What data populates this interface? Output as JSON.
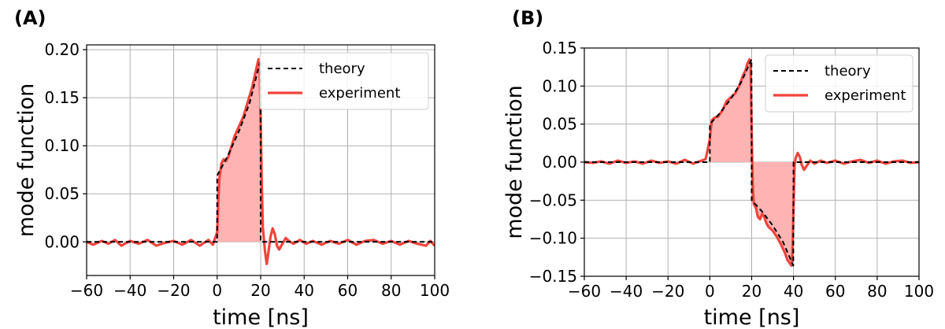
{
  "chart_data": [
    {
      "panel_label": "(A)",
      "type": "line",
      "xlabel": "time [ns]",
      "ylabel": "mode function",
      "xlim": [
        -60,
        100
      ],
      "ylim": [
        -0.035,
        0.205
      ],
      "xticks": [
        -60,
        -40,
        -20,
        0,
        20,
        40,
        60,
        80,
        100
      ],
      "xtick_labels": [
        "−60",
        "−40",
        "−20",
        "0",
        "20",
        "40",
        "60",
        "80",
        "100"
      ],
      "yticks": [
        0.0,
        0.05,
        0.1,
        0.15,
        0.2
      ],
      "ytick_labels": [
        "0.00",
        "0.05",
        "0.10",
        "0.15",
        "0.20"
      ],
      "grid": true,
      "legend_position": "top-right",
      "series": [
        {
          "name": "theory",
          "style": "dashed",
          "color": "#000000",
          "x": [
            -60,
            0,
            0,
            5,
            10,
            15,
            19.9,
            20,
            100
          ],
          "y": [
            0,
            0,
            0.069,
            0.09,
            0.115,
            0.145,
            0.189,
            0,
            0
          ]
        },
        {
          "name": "experiment",
          "style": "solid",
          "color": "#f0443c",
          "fill": "#ffb3b3",
          "fill_range": [
            0,
            20
          ],
          "x": [
            -60,
            -57,
            -53,
            -50,
            -47,
            -44,
            -40,
            -36,
            -32,
            -28,
            -24,
            -20,
            -16,
            -12,
            -8,
            -4,
            -2,
            0,
            0.5,
            1,
            2,
            3,
            4,
            5,
            6,
            8,
            10,
            12,
            14,
            16,
            17,
            18,
            19,
            19.5,
            20,
            20.5,
            21,
            22,
            22.8,
            23.5,
            24.5,
            25.5,
            26.5,
            27.5,
            28.5,
            30,
            31.5,
            33,
            35,
            38,
            41,
            44,
            48,
            52,
            56,
            60,
            64,
            68,
            72,
            76,
            80,
            84,
            88,
            92,
            96,
            98,
            100
          ],
          "y": [
            0,
            -0.003,
            0.001,
            -0.002,
            0.002,
            -0.004,
            0.001,
            -0.002,
            0.002,
            -0.004,
            -0.001,
            0.001,
            -0.003,
            0.002,
            -0.004,
            0.002,
            -0.003,
            0.01,
            0.04,
            0.065,
            0.082,
            0.086,
            0.084,
            0.088,
            0.095,
            0.11,
            0.12,
            0.13,
            0.145,
            0.16,
            0.17,
            0.18,
            0.19,
            0.185,
            0.13,
            0.06,
            0.015,
            -0.01,
            -0.023,
            -0.012,
            0.005,
            0.014,
            0.008,
            -0.004,
            -0.008,
            -0.002,
            0.004,
            0.001,
            -0.002,
            0.002,
            -0.002,
            0.001,
            -0.003,
            0.001,
            -0.002,
            0.002,
            -0.003,
            0.001,
            0.002,
            -0.002,
            0.001,
            -0.003,
            0.001,
            -0.002,
            -0.004,
            0.001,
            -0.004
          ]
        }
      ]
    },
    {
      "panel_label": "(B)",
      "type": "line",
      "xlabel": "time [ns]",
      "ylabel": "mode function",
      "xlim": [
        -60,
        100
      ],
      "ylim": [
        -0.15,
        0.15
      ],
      "xticks": [
        -60,
        -40,
        -20,
        0,
        20,
        40,
        60,
        80,
        100
      ],
      "xtick_labels": [
        "−60",
        "−40",
        "−20",
        "0",
        "20",
        "40",
        "60",
        "80",
        "100"
      ],
      "yticks": [
        -0.15,
        -0.1,
        -0.05,
        0.0,
        0.05,
        0.1,
        0.15
      ],
      "ytick_labels": [
        "−0.15",
        "−0.10",
        "−0.05",
        "0.00",
        "0.05",
        "0.10",
        "0.15"
      ],
      "grid": true,
      "legend_position": "top-right",
      "series": [
        {
          "name": "theory",
          "style": "dashed",
          "color": "#000000",
          "x": [
            -60,
            0,
            0,
            5,
            10,
            15,
            19.9,
            20,
            25,
            30,
            35,
            39.9,
            40,
            100
          ],
          "y": [
            0,
            0,
            0.05,
            0.065,
            0.083,
            0.105,
            0.135,
            -0.05,
            -0.065,
            -0.083,
            -0.105,
            -0.136,
            0,
            0
          ]
        },
        {
          "name": "experiment",
          "style": "solid",
          "color": "#f0443c",
          "fill": "#ffb3b3",
          "fill_range": [
            0,
            40
          ],
          "x": [
            -60,
            -56,
            -52,
            -48,
            -44,
            -40,
            -36,
            -32,
            -28,
            -24,
            -20,
            -16,
            -12,
            -8,
            -4,
            -2,
            0,
            0.5,
            1,
            2,
            4,
            6,
            8,
            10,
            12,
            14,
            16,
            17,
            18,
            19,
            19.5,
            20,
            20.5,
            21,
            22,
            23,
            24,
            25,
            26,
            27,
            28,
            30,
            32,
            34,
            36,
            37,
            38,
            39,
            39.5,
            40,
            40.5,
            41,
            42,
            43,
            44,
            45,
            46,
            48,
            50,
            53,
            56,
            60,
            64,
            68,
            72,
            76,
            80,
            84,
            88,
            92,
            96,
            100
          ],
          "y": [
            0,
            -0.001,
            0.001,
            -0.002,
            0.002,
            -0.001,
            0.001,
            -0.002,
            0.002,
            -0.001,
            0.001,
            -0.002,
            0.003,
            -0.002,
            0.002,
            0.004,
            0.03,
            0.045,
            0.055,
            0.058,
            0.06,
            0.068,
            0.08,
            0.085,
            0.09,
            0.1,
            0.115,
            0.12,
            0.13,
            0.135,
            0.128,
            0.04,
            -0.03,
            -0.055,
            -0.06,
            -0.072,
            -0.075,
            -0.068,
            -0.072,
            -0.08,
            -0.085,
            -0.09,
            -0.098,
            -0.108,
            -0.12,
            -0.128,
            -0.132,
            -0.136,
            -0.12,
            -0.06,
            -0.005,
            0.005,
            0.012,
            0.007,
            -0.004,
            -0.01,
            -0.006,
            0.002,
            -0.002,
            0.002,
            -0.001,
            0.002,
            -0.002,
            0.001,
            0.003,
            -0.001,
            0.002,
            -0.002,
            0.001,
            0.002,
            -0.001,
            0
          ]
        }
      ]
    }
  ]
}
